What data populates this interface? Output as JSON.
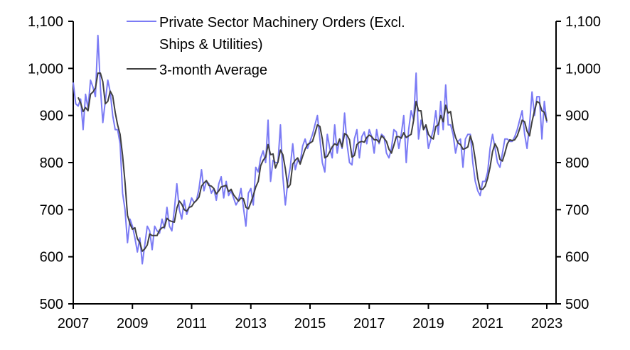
{
  "chart_data": {
    "type": "line",
    "title": "",
    "xlabel": "",
    "ylabel": "",
    "x_start": "2007-01",
    "frequency": "monthly",
    "xlim": [
      2007,
      2023.1
    ],
    "ylim": [
      500,
      1100
    ],
    "y_ticks": [
      "500",
      "600",
      "700",
      "800",
      "900",
      "1,000",
      "1,100"
    ],
    "y_tick_values": [
      500,
      600,
      700,
      800,
      900,
      1000,
      1100
    ],
    "x_ticks": [
      "2007",
      "2009",
      "2011",
      "2013",
      "2015",
      "2017",
      "2019",
      "2021",
      "2023"
    ],
    "x_tick_values": [
      2007,
      2009,
      2011,
      2013,
      2015,
      2017,
      2019,
      2021,
      2023
    ],
    "grid": false,
    "legend_placement": "top-left",
    "series": [
      {
        "name": "Private Sector Machinery Orders (Excl. Ships & Utilities)",
        "legend_lines": [
          "Private Sector Machinery Orders (Excl.",
          "Ships & Utilities)"
        ],
        "color": "#7b7bf5",
        "values": [
          970,
          925,
          920,
          935,
          870,
          945,
          915,
          975,
          960,
          940,
          1070,
          960,
          885,
          930,
          975,
          950,
          900,
          870,
          870,
          840,
          735,
          700,
          630,
          680,
          665,
          640,
          610,
          640,
          585,
          625,
          665,
          655,
          615,
          665,
          655,
          650,
          680,
          660,
          705,
          665,
          655,
          700,
          755,
          700,
          680,
          720,
          690,
          705,
          725,
          715,
          720,
          745,
          785,
          740,
          760,
          755,
          735,
          745,
          720,
          755,
          770,
          725,
          760,
          730,
          740,
          725,
          710,
          720,
          745,
          705,
          665,
          735,
          745,
          710,
          790,
          780,
          810,
          825,
          800,
          890,
          760,
          805,
          800,
          800,
          880,
          770,
          710,
          760,
          790,
          840,
          785,
          805,
          800,
          835,
          850,
          830,
          845,
          860,
          880,
          900,
          850,
          800,
          780,
          860,
          830,
          810,
          880,
          820,
          850,
          830,
          905,
          840,
          800,
          795,
          850,
          870,
          810,
          855,
          865,
          840,
          870,
          855,
          820,
          870,
          840,
          860,
          855,
          820,
          810,
          830,
          870,
          865,
          830,
          860,
          900,
          800,
          870,
          910,
          890,
          990,
          850,
          890,
          870,
          880,
          830,
          850,
          870,
          910,
          860,
          930,
          870,
          965,
          880,
          880,
          860,
          820,
          845,
          850,
          790,
          850,
          860,
          860,
          800,
          760,
          740,
          730,
          760,
          760,
          780,
          830,
          860,
          830,
          800,
          790,
          820,
          850,
          850,
          845,
          845,
          855,
          870,
          890,
          910,
          860,
          830,
          880,
          950,
          900,
          940,
          940,
          850,
          930,
          885
        ]
      },
      {
        "name": "3-month Average",
        "legend_lines": [
          "3-month Average"
        ],
        "color": "#404040",
        "derived": "3-month moving average of series 0"
      }
    ]
  }
}
